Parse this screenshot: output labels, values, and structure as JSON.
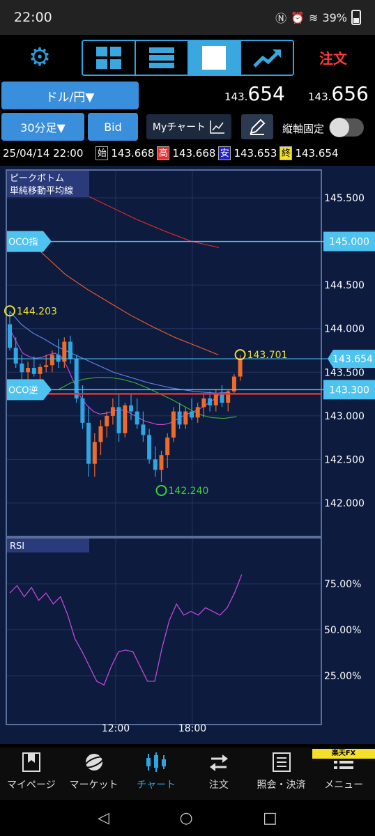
{
  "status": {
    "time": "22:00",
    "battery": "39%"
  },
  "toolbar": {
    "order_label": "注文"
  },
  "pair": {
    "label": "ドル/円▼"
  },
  "prices": {
    "bid_prefix": "143.",
    "bid_main": "654",
    "ask_prefix": "143.",
    "ask_main": "656"
  },
  "controls": {
    "timeframe": "30分足▼",
    "bid_button": "Bid",
    "mychart": "Myチャート",
    "axis_fix": "縦軸固定"
  },
  "ohlc": {
    "datetime": "25/04/14 22:00",
    "open_tag": "始",
    "open": "143.668",
    "high_tag": "高",
    "high": "143.668",
    "low_tag": "安",
    "low": "143.653",
    "close_tag": "終",
    "close": "143.654"
  },
  "chart_data": {
    "type": "candlestick",
    "indicators": [
      "ピークボトム",
      "単純移動平均線"
    ],
    "y_ticks": [
      "145.500",
      "145.000",
      "144.500",
      "144.000",
      "143.500",
      "143.000",
      "142.500",
      "142.000"
    ],
    "ylim": [
      141.8,
      145.9
    ],
    "x_ticks": [
      "12:00",
      "18:00"
    ],
    "oco_limit": {
      "label": "OCO指",
      "value": "145.000",
      "price": 145.0
    },
    "oco_stop": {
      "label": "OCO逆",
      "value": "143.300",
      "price": 143.3
    },
    "current_price": {
      "value": "143.654",
      "price": 143.654
    },
    "peak_high": {
      "label": "144.203",
      "price": 144.203
    },
    "peak_recent": {
      "label": "143.701",
      "price": 143.701
    },
    "bottom_low": {
      "label": "142.240",
      "price": 142.24
    },
    "candles": [
      [
        144.05,
        144.2,
        143.75,
        143.78
      ],
      [
        143.78,
        143.9,
        143.55,
        143.6
      ],
      [
        143.6,
        143.7,
        143.42,
        143.5
      ],
      [
        143.5,
        143.62,
        143.4,
        143.55
      ],
      [
        143.55,
        143.68,
        143.45,
        143.48
      ],
      [
        143.48,
        143.6,
        143.4,
        143.56
      ],
      [
        143.56,
        143.7,
        143.5,
        143.58
      ],
      [
        143.58,
        143.75,
        143.5,
        143.7
      ],
      [
        143.7,
        143.88,
        143.55,
        143.62
      ],
      [
        143.62,
        143.9,
        143.55,
        143.85
      ],
      [
        143.85,
        143.92,
        143.6,
        143.65
      ],
      [
        143.65,
        143.7,
        143.15,
        143.2
      ],
      [
        143.2,
        143.35,
        142.85,
        142.92
      ],
      [
        142.92,
        143.1,
        142.3,
        142.45
      ],
      [
        142.45,
        142.8,
        142.3,
        142.7
      ],
      [
        142.7,
        142.95,
        142.55,
        142.88
      ],
      [
        142.88,
        143.05,
        142.75,
        143.0
      ],
      [
        143.0,
        143.2,
        142.9,
        143.1
      ],
      [
        143.1,
        143.25,
        142.7,
        142.8
      ],
      [
        142.8,
        143.15,
        142.75,
        143.12
      ],
      [
        143.12,
        143.25,
        142.95,
        143.05
      ],
      [
        143.05,
        143.2,
        142.85,
        142.9
      ],
      [
        142.9,
        143.05,
        142.7,
        142.78
      ],
      [
        142.78,
        142.85,
        142.45,
        142.5
      ],
      [
        142.5,
        142.65,
        142.3,
        142.38
      ],
      [
        142.38,
        142.6,
        142.24,
        142.55
      ],
      [
        142.55,
        142.8,
        142.4,
        142.75
      ],
      [
        142.75,
        143.1,
        142.7,
        143.05
      ],
      [
        143.05,
        143.15,
        142.85,
        142.9
      ],
      [
        142.9,
        143.1,
        142.85,
        143.05
      ],
      [
        143.05,
        143.2,
        142.95,
        142.98
      ],
      [
        142.98,
        143.15,
        142.92,
        143.1
      ],
      [
        143.1,
        143.25,
        142.98,
        143.2
      ],
      [
        143.2,
        143.28,
        143.05,
        143.12
      ],
      [
        143.12,
        143.3,
        143.05,
        143.25
      ],
      [
        143.25,
        143.35,
        143.1,
        143.15
      ],
      [
        143.15,
        143.3,
        143.05,
        143.28
      ],
      [
        143.28,
        143.48,
        143.25,
        143.45
      ],
      [
        143.45,
        143.7,
        143.4,
        143.66
      ]
    ],
    "sma_short": [
      144.0,
      143.85,
      143.72,
      143.68,
      143.66,
      143.67,
      143.7,
      143.72,
      143.68,
      143.55,
      143.38,
      143.22,
      143.12,
      143.05,
      143.02,
      143.03,
      143.05,
      143.07,
      143.06,
      143.02,
      142.98,
      142.94,
      142.92,
      142.9,
      142.9,
      142.92,
      142.96,
      143.0,
      143.03,
      143.06,
      143.1,
      143.15,
      143.2,
      143.28
    ],
    "sma_mid": [
      144.2,
      144.05,
      143.95,
      143.88,
      143.8,
      143.74,
      143.68,
      143.62,
      143.56,
      143.5,
      143.46,
      143.42,
      143.38,
      143.35,
      143.32,
      143.3,
      143.28,
      143.27,
      143.26,
      143.27
    ],
    "sma_green": [
      143.3,
      143.38,
      143.42,
      143.44,
      143.44,
      143.42,
      143.38,
      143.32,
      143.25,
      143.18,
      143.1,
      143.02,
      142.98,
      142.97,
      142.99
    ],
    "sma_long_orange": [
      145.08,
      144.85,
      144.62,
      144.45,
      144.3,
      144.15,
      144.02,
      143.9,
      143.8,
      143.7
    ],
    "sma_long_red": [
      145.55,
      145.4,
      145.25,
      145.12,
      145.0,
      144.93
    ],
    "rsi": {
      "label": "RSI",
      "y_ticks": [
        "75.00%",
        "50.00%",
        "25.00%"
      ],
      "ylim": [
        0,
        100
      ],
      "values": [
        70,
        74,
        68,
        73,
        66,
        70,
        64,
        68,
        58,
        45,
        38,
        30,
        22,
        20,
        30,
        38,
        39,
        38,
        30,
        22,
        22,
        40,
        55,
        64,
        58,
        60,
        58,
        62,
        60,
        58,
        62,
        70,
        80
      ]
    }
  },
  "bottomnav": {
    "items": [
      {
        "label": "マイページ",
        "icon": "bookmark-icon"
      },
      {
        "label": "マーケット",
        "icon": "globe-icon"
      },
      {
        "label": "チャート",
        "icon": "candlestick-icon"
      },
      {
        "label": "注文",
        "icon": "order-icon"
      },
      {
        "label": "照会・決済",
        "icon": "ledger-icon"
      },
      {
        "label": "メニュー",
        "icon": "menu-icon"
      }
    ],
    "brand": "楽天FX"
  }
}
